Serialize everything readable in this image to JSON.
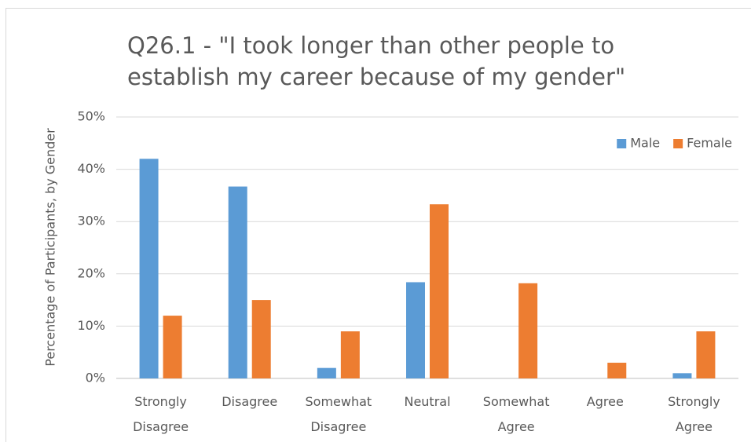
{
  "chart_data": {
    "type": "bar",
    "title": "Q26.1 - \"I took longer than other people to establish my career because of my gender\"",
    "y_label": "Percentage of Participants, by Gender",
    "categories": [
      "Strongly Disagree",
      "Disagree",
      "Somewhat Disagree",
      "Neutral",
      "Somewhat Agree",
      "Agree",
      "Strongly Agree"
    ],
    "series": [
      {
        "name": "Male",
        "color": "#5b9bd5",
        "values": [
          42,
          36.7,
          2,
          18.4,
          0,
          0,
          1
        ]
      },
      {
        "name": "Female",
        "color": "#ed7d31",
        "values": [
          12,
          15,
          9,
          33.3,
          18.2,
          3,
          9
        ]
      }
    ],
    "ylim": [
      0,
      50
    ],
    "yticks": [
      {
        "value": 0,
        "label": "0%"
      },
      {
        "value": 10,
        "label": "10%"
      },
      {
        "value": 20,
        "label": "20%"
      },
      {
        "value": 30,
        "label": "30%"
      },
      {
        "value": 40,
        "label": "40%"
      },
      {
        "value": 50,
        "label": "50%"
      }
    ],
    "grid": true,
    "legend": "top-right"
  }
}
